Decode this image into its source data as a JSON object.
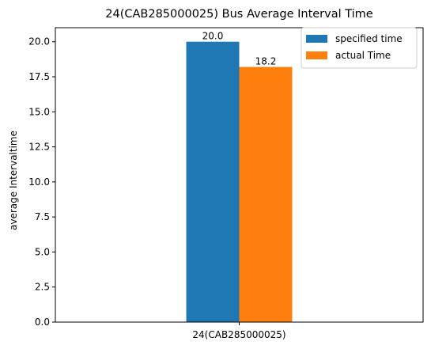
{
  "chart_data": {
    "type": "bar",
    "title": "24(CAB285000025) Bus Average Interval Time",
    "xlabel": "",
    "ylabel": "average Intervaltime",
    "categories": [
      "24(CAB285000025)"
    ],
    "series": [
      {
        "name": "specified time",
        "values": [
          20.0
        ],
        "color": "#1f77b4",
        "label": "20.0"
      },
      {
        "name": "actual Time",
        "values": [
          18.2
        ],
        "color": "#ff7f0e",
        "label": "18.2"
      }
    ],
    "ylim": [
      0,
      21
    ],
    "yticks": [
      "0.0",
      "2.5",
      "5.0",
      "7.5",
      "10.0",
      "12.5",
      "15.0",
      "17.5",
      "20.0"
    ],
    "grid": false,
    "legend_position": "top-right"
  }
}
